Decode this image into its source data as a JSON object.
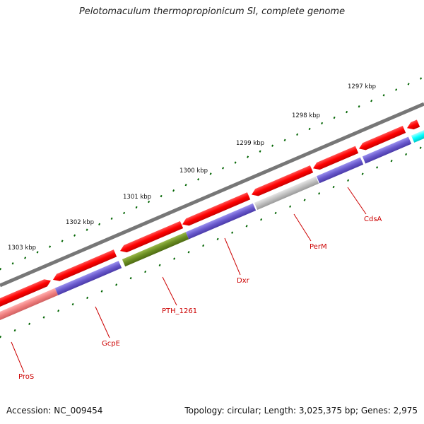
{
  "title": "Pelotomaculum thermopropionicum SI, complete genome",
  "footer": {
    "accession": "Accession: NC_009454",
    "summary": "Topology: circular; Length: 3,025,375 bp; Genes: 2,975"
  },
  "ruler": {
    "unit": "kbp",
    "labels": [
      "1303 kbp",
      "1302 kbp",
      "1301 kbp",
      "1300 kbp",
      "1299 kbp",
      "1298 kbp",
      "1297 kbp"
    ]
  },
  "gene_labels": [
    "ProS",
    "GcpE",
    "PTH_1261",
    "Dxr",
    "PerM",
    "CdsA"
  ],
  "colors": {
    "backbone": "#777777",
    "forward_gene": "#ff0000",
    "reverse_gene": "#6a5acd",
    "pth_1261": "#6b8e23",
    "perm": "#c0c0c0",
    "pros": "#f08080",
    "cyan_gene": "#00ffff",
    "ticks": "#006400",
    "gene_label": "#cc0000"
  }
}
